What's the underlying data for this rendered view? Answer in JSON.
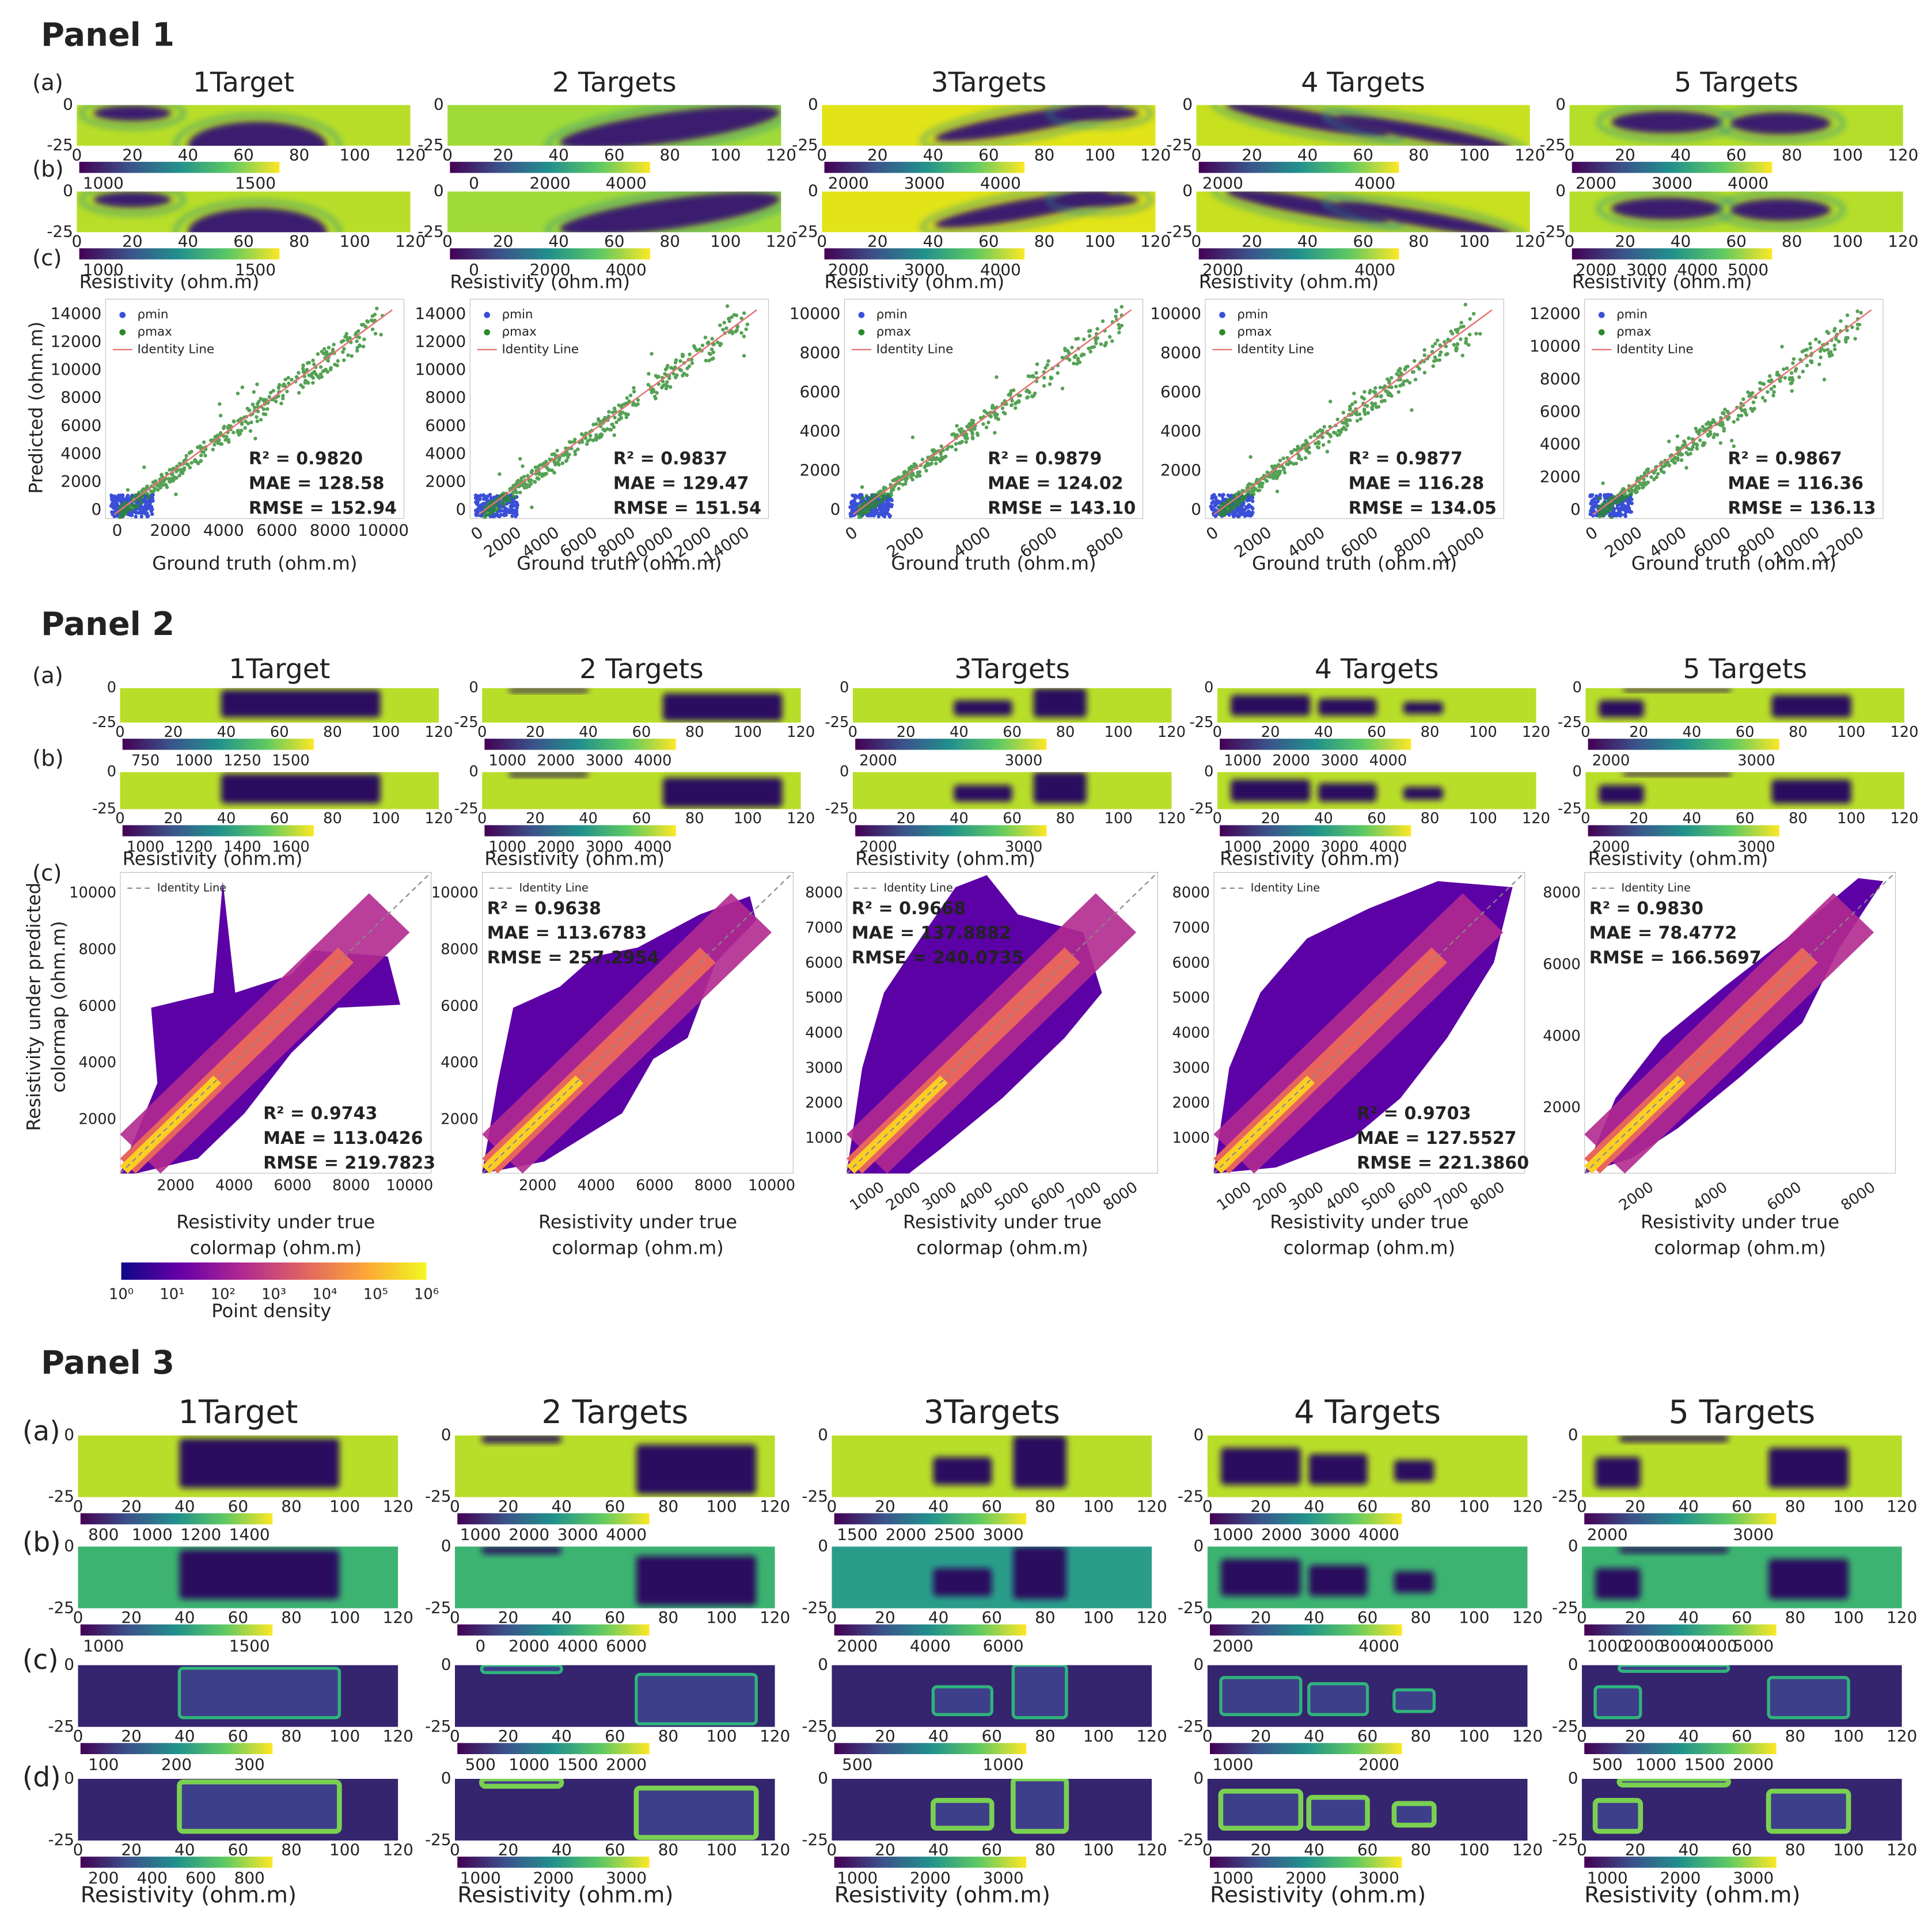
{
  "heatmap_xticks": [
    0,
    20,
    40,
    60,
    80,
    100,
    120
  ],
  "heatmap_yticks": [
    0,
    -25
  ],
  "panels": [
    {
      "title": "Panel 1",
      "row_labels": [
        "(a)",
        "(b)",
        "(c)"
      ],
      "colorbar_label": "Resistivity (ohm.m)",
      "plot_xlabel": [
        "Ground truth (ohm.m)"
      ],
      "plot_ylabel": [
        "Predicted (ohm.m)"
      ],
      "plot_legend": [
        "ρmin",
        "ρmax",
        "Identity Line"
      ],
      "columns": [
        {
          "title": "1Target",
          "maps": [
            {
              "colorbar_ticks": [
                1000,
                1500
              ]
            },
            {
              "colorbar_ticks": [
                1000,
                1500
              ]
            }
          ],
          "plot": {
            "metrics": [
              "R² = 0.9820",
              "MAE = 128.58",
              "RMSE = 152.94"
            ],
            "xticks": [
              0,
              2000,
              4000,
              6000,
              8000,
              10000
            ],
            "yticks": [
              0,
              2000,
              4000,
              6000,
              8000,
              10000,
              12000,
              14000
            ],
            "rotate_xticks": false
          }
        },
        {
          "title": "2 Targets",
          "maps": [
            {
              "colorbar_ticks": [
                0,
                2000,
                4000
              ]
            },
            {
              "colorbar_ticks": [
                0,
                2000,
                4000
              ]
            }
          ],
          "plot": {
            "metrics": [
              "R² = 0.9837",
              "MAE = 129.47",
              "RMSE = 151.54"
            ],
            "xticks": [
              0,
              2000,
              4000,
              6000,
              8000,
              10000,
              12000,
              14000
            ],
            "yticks": [
              0,
              2000,
              4000,
              6000,
              8000,
              10000,
              12000,
              14000
            ],
            "rotate_xticks": true
          }
        },
        {
          "title": "3Targets",
          "maps": [
            {
              "colorbar_ticks": [
                2000,
                3000,
                4000
              ]
            },
            {
              "colorbar_ticks": [
                2000,
                3000,
                4000
              ]
            }
          ],
          "plot": {
            "metrics": [
              "R² = 0.9879",
              "MAE = 124.02",
              "RMSE = 143.10"
            ],
            "xticks": [
              0,
              2000,
              4000,
              6000,
              8000
            ],
            "yticks": [
              0,
              2000,
              4000,
              6000,
              8000,
              10000
            ],
            "rotate_xticks": true
          }
        },
        {
          "title": "4 Targets",
          "maps": [
            {
              "colorbar_ticks": [
                2000,
                4000
              ]
            },
            {
              "colorbar_ticks": [
                2000,
                4000
              ]
            }
          ],
          "plot": {
            "metrics": [
              "R² = 0.9877",
              "MAE = 116.28",
              "RMSE = 134.05"
            ],
            "xticks": [
              0,
              2000,
              4000,
              6000,
              8000,
              10000
            ],
            "yticks": [
              0,
              2000,
              4000,
              6000,
              8000,
              10000
            ],
            "rotate_xticks": true
          }
        },
        {
          "title": "5 Targets",
          "maps": [
            {
              "colorbar_ticks": [
                2000,
                3000,
                4000
              ]
            },
            {
              "colorbar_ticks": [
                2000,
                3000,
                4000,
                5000
              ]
            }
          ],
          "plot": {
            "metrics": [
              "R² = 0.9867",
              "MAE = 116.36",
              "RMSE = 136.13"
            ],
            "xticks": [
              0,
              2000,
              4000,
              6000,
              8000,
              10000,
              12000
            ],
            "yticks": [
              0,
              2000,
              4000,
              6000,
              8000,
              10000,
              12000
            ],
            "rotate_xticks": true
          }
        }
      ]
    },
    {
      "title": "Panel 2",
      "row_labels": [
        "(a)",
        "(b)",
        "(c)"
      ],
      "colorbar_label": "Resistivity (ohm.m)",
      "plot_xlabel": [
        "Resistivity under true",
        "colormap (ohm.m)"
      ],
      "plot_ylabel": [
        "Resistivity under predicted",
        "colormap (ohm.m)"
      ],
      "plot_legend": [
        "Identity Line"
      ],
      "density_colorbar": {
        "ticks": [
          "10⁰",
          "10¹",
          "10²",
          "10³",
          "10⁴",
          "10⁵",
          "10⁶"
        ],
        "label": "Point density"
      },
      "columns": [
        {
          "title": "1Target",
          "maps": [
            {
              "colorbar_ticks": [
                750,
                1000,
                1250,
                1500
              ]
            },
            {
              "colorbar_ticks": [
                1000,
                1200,
                1400,
                1600
              ]
            }
          ],
          "plot": {
            "metrics": [
              "R² = 0.9743",
              "MAE = 113.0426",
              "RMSE = 219.7823"
            ],
            "xticks": [
              2000,
              4000,
              6000,
              8000,
              10000
            ],
            "yticks": [
              2000,
              4000,
              6000,
              8000,
              10000
            ],
            "rotate_xticks": false
          }
        },
        {
          "title": "2 Targets",
          "maps": [
            {
              "colorbar_ticks": [
                1000,
                2000,
                3000,
                4000
              ]
            },
            {
              "colorbar_ticks": [
                1000,
                2000,
                3000,
                4000
              ]
            }
          ],
          "plot": {
            "metrics": [
              "R² = 0.9638",
              "MAE = 113.6783",
              "RMSE = 257.2954"
            ],
            "xticks": [
              2000,
              4000,
              6000,
              8000,
              10000
            ],
            "yticks": [
              2000,
              4000,
              6000,
              8000,
              10000
            ],
            "rotate_xticks": false
          }
        },
        {
          "title": "3Targets",
          "maps": [
            {
              "colorbar_ticks": [
                2000,
                3000
              ]
            },
            {
              "colorbar_ticks": [
                2000,
                3000
              ]
            }
          ],
          "plot": {
            "metrics": [
              "R² = 0.9668",
              "MAE = 137.8882",
              "RMSE = 240.0735"
            ],
            "xticks": [
              1000,
              2000,
              3000,
              4000,
              5000,
              6000,
              7000,
              8000
            ],
            "yticks": [
              1000,
              2000,
              3000,
              4000,
              5000,
              6000,
              7000,
              8000
            ],
            "rotate_xticks": true
          }
        },
        {
          "title": "4 Targets",
          "maps": [
            {
              "colorbar_ticks": [
                1000,
                2000,
                3000,
                4000
              ]
            },
            {
              "colorbar_ticks": [
                1000,
                2000,
                3000,
                4000
              ]
            }
          ],
          "plot": {
            "metrics": [
              "R² = 0.9703",
              "MAE = 127.5527",
              "RMSE = 221.3860"
            ],
            "xticks": [
              1000,
              2000,
              3000,
              4000,
              5000,
              6000,
              7000,
              8000
            ],
            "yticks": [
              1000,
              2000,
              3000,
              4000,
              5000,
              6000,
              7000,
              8000
            ],
            "rotate_xticks": true
          }
        },
        {
          "title": "5 Targets",
          "maps": [
            {
              "colorbar_ticks": [
                2000,
                3000
              ]
            },
            {
              "colorbar_ticks": [
                2000,
                3000
              ]
            }
          ],
          "plot": {
            "metrics": [
              "R² = 0.9830",
              "MAE = 78.4772",
              "RMSE = 166.5697"
            ],
            "xticks": [
              2000,
              4000,
              6000,
              8000
            ],
            "yticks": [
              2000,
              4000,
              6000,
              8000
            ],
            "rotate_xticks": true
          }
        }
      ]
    },
    {
      "title": "Panel 3",
      "row_labels": [
        "(a)",
        "(b)",
        "(c)",
        "(d)"
      ],
      "colorbar_label": "Resistivity (ohm.m)",
      "columns": [
        {
          "title": "1Target",
          "maps": [
            {
              "colorbar_ticks": [
                800,
                1000,
                1200,
                1400
              ]
            },
            {
              "colorbar_ticks": [
                1000,
                1500
              ]
            },
            {
              "colorbar_ticks": [
                100,
                200,
                300
              ]
            },
            {
              "colorbar_ticks": [
                200,
                400,
                600,
                800
              ]
            }
          ]
        },
        {
          "title": "2 Targets",
          "maps": [
            {
              "colorbar_ticks": [
                1000,
                2000,
                3000,
                4000
              ]
            },
            {
              "colorbar_ticks": [
                0,
                2000,
                4000,
                6000
              ]
            },
            {
              "colorbar_ticks": [
                500,
                1000,
                1500,
                2000
              ]
            },
            {
              "colorbar_ticks": [
                1000,
                2000,
                3000
              ]
            }
          ]
        },
        {
          "title": "3Targets",
          "maps": [
            {
              "colorbar_ticks": [
                1500,
                2000,
                2500,
                3000
              ]
            },
            {
              "colorbar_ticks": [
                2000,
                4000,
                6000
              ]
            },
            {
              "colorbar_ticks": [
                500,
                1000
              ]
            },
            {
              "colorbar_ticks": [
                1000,
                2000,
                3000
              ]
            }
          ]
        },
        {
          "title": "4 Targets",
          "maps": [
            {
              "colorbar_ticks": [
                1000,
                2000,
                3000,
                4000
              ]
            },
            {
              "colorbar_ticks": [
                2000,
                4000
              ]
            },
            {
              "colorbar_ticks": [
                1000,
                2000
              ]
            },
            {
              "colorbar_ticks": [
                1000,
                2000,
                3000
              ]
            }
          ]
        },
        {
          "title": "5 Targets",
          "maps": [
            {
              "colorbar_ticks": [
                2000,
                3000
              ]
            },
            {
              "colorbar_ticks": [
                1000,
                2000,
                3000,
                4000,
                5000
              ]
            },
            {
              "colorbar_ticks": [
                500,
                1000,
                1500,
                2000
              ]
            },
            {
              "colorbar_ticks": [
                1000,
                2000,
                3000
              ]
            }
          ]
        }
      ]
    }
  ]
}
